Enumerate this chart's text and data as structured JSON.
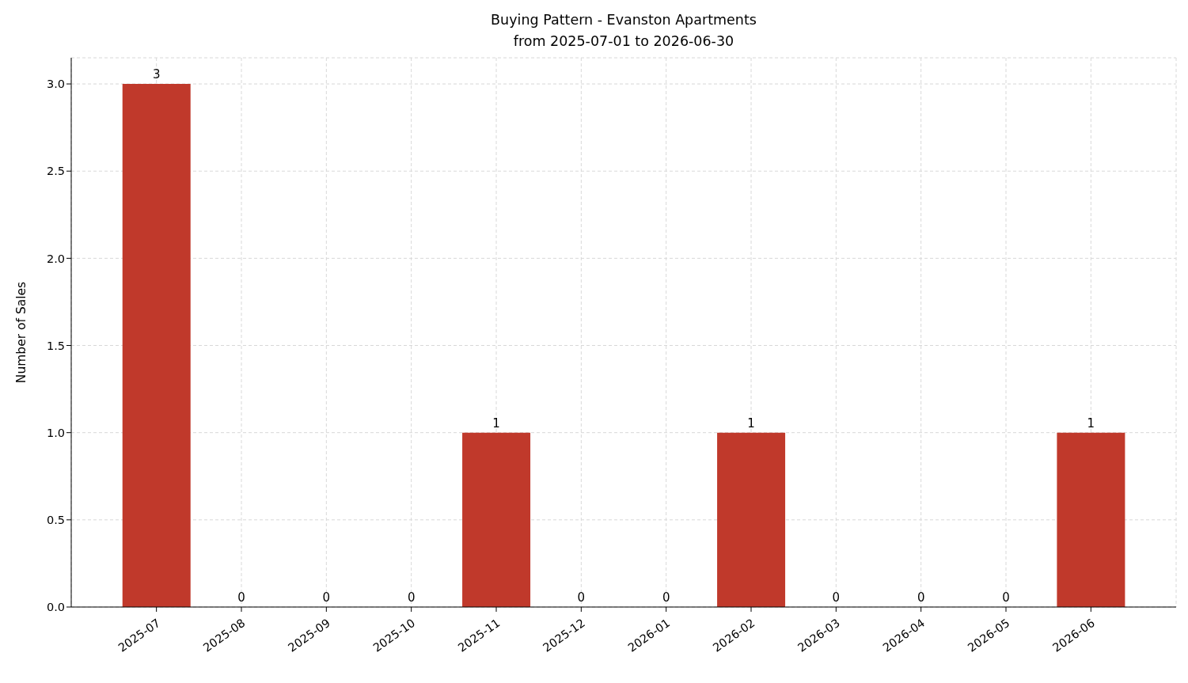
{
  "chart_data": {
    "type": "bar",
    "title": "Buying Pattern - Evanston Apartments",
    "subtitle": "from 2025-07-01 to 2026-06-30",
    "ylabel": "Number of Sales",
    "categories": [
      "2025-07",
      "2025-08",
      "2025-09",
      "2025-10",
      "2025-11",
      "2025-12",
      "2026-01",
      "2026-02",
      "2026-03",
      "2026-04",
      "2026-05",
      "2026-06"
    ],
    "values": [
      3,
      0,
      0,
      0,
      1,
      0,
      0,
      1,
      0,
      0,
      0,
      1
    ],
    "color": "#c0392b",
    "ylim": [
      0,
      3.15
    ],
    "yticks": [
      {
        "value": 0,
        "label": "0.0"
      },
      {
        "value": 0.5,
        "label": "0.5"
      },
      {
        "value": 1,
        "label": "1.0"
      },
      {
        "value": 1.5,
        "label": "1.5"
      },
      {
        "value": 2,
        "label": "2.0"
      },
      {
        "value": 2.5,
        "label": "2.5"
      },
      {
        "value": 3,
        "label": "3.0"
      }
    ],
    "grid": true,
    "data_labels": true
  }
}
